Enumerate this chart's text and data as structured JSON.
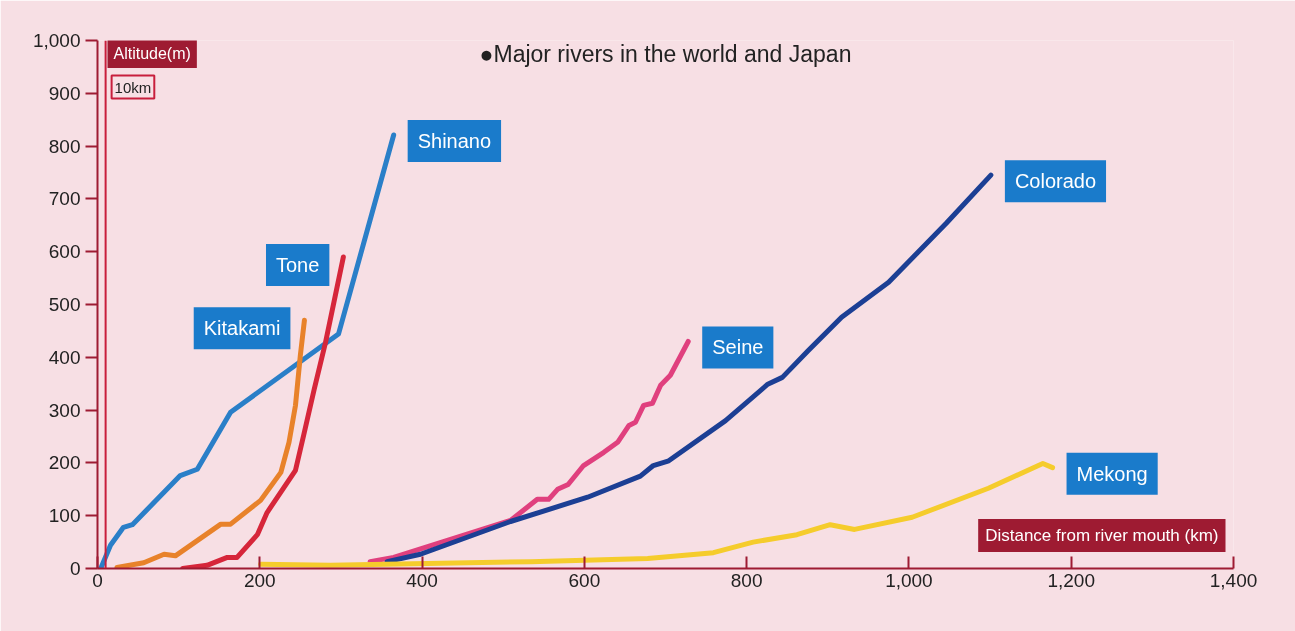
{
  "chart_data": {
    "type": "line",
    "title": "●Major rivers in the world and Japan",
    "xlabel": "Distance from river mouth (km)",
    "ylabel": "Altitude(m)",
    "xlim": [
      0,
      1400
    ],
    "ylim": [
      0,
      1000
    ],
    "xticks": [
      0,
      200,
      400,
      600,
      800,
      {
        "value": 1000,
        "label": "1,000"
      },
      {
        "value": 1200,
        "label": "1,200"
      },
      {
        "value": 1400,
        "label": "1,400"
      }
    ],
    "yticks": [
      0,
      100,
      200,
      300,
      400,
      500,
      600,
      700,
      800,
      900,
      {
        "value": 1000,
        "label": "1,000"
      }
    ],
    "grid": false,
    "line_style": "solid",
    "ref_lines": [
      {
        "axis": "x",
        "value": 10,
        "label": "10km",
        "color": "#c81e3c"
      }
    ],
    "series": [
      {
        "name": "Shinano",
        "color": "#2a7fc8",
        "x": [
          4,
          16,
          32,
          43,
          102,
          123,
          164,
          297,
          365
        ],
        "values": [
          0,
          44,
          78,
          83,
          176,
          188,
          296,
          444,
          821
        ]
      },
      {
        "name": "Tone",
        "color": "#d6263a",
        "x": [
          105,
          135,
          160,
          172,
          197,
          209,
          244,
          254,
          267,
          281,
          303
        ],
        "values": [
          0,
          6,
          21,
          21,
          64,
          106,
          186,
          252,
          339,
          428,
          590
        ]
      },
      {
        "name": "Kitakami",
        "color": "#e8822a",
        "x": [
          24,
          57,
          82,
          96,
          152,
          164,
          201,
          226,
          236,
          244,
          250,
          255
        ],
        "values": [
          2,
          11,
          27,
          24,
          84,
          84,
          129,
          182,
          239,
          309,
          404,
          470
        ]
      },
      {
        "name": "Seine",
        "color": "#e0407e",
        "x": [
          336,
          365,
          509,
          542,
          556,
          567,
          580,
          599,
          624,
          641,
          655,
          663,
          673,
          684,
          694,
          706,
          728
        ],
        "values": [
          13,
          21,
          91,
          131,
          131,
          150,
          159,
          195,
          220,
          239,
          271,
          277,
          309,
          313,
          347,
          366,
          430
        ]
      },
      {
        "name": "Colorado",
        "color": "#1c3f94",
        "x": [
          357,
          398,
          509,
          604,
          669,
          685,
          704,
          774,
          826,
          844,
          876,
          917,
          975,
          1046,
          1101
        ],
        "values": [
          13,
          27,
          89,
          135,
          175,
          195,
          204,
          280,
          349,
          362,
          413,
          476,
          542,
          654,
          745
        ]
      },
      {
        "name": "Mekong",
        "color": "#f5cc2c",
        "x": [
          201,
          287,
          534,
          678,
          759,
          808,
          862,
          903,
          933,
          1004,
          1098,
          1165,
          1177
        ],
        "values": [
          8,
          6,
          13,
          19,
          30,
          50,
          64,
          83,
          74,
          97,
          152,
          199,
          191
        ]
      }
    ]
  }
}
